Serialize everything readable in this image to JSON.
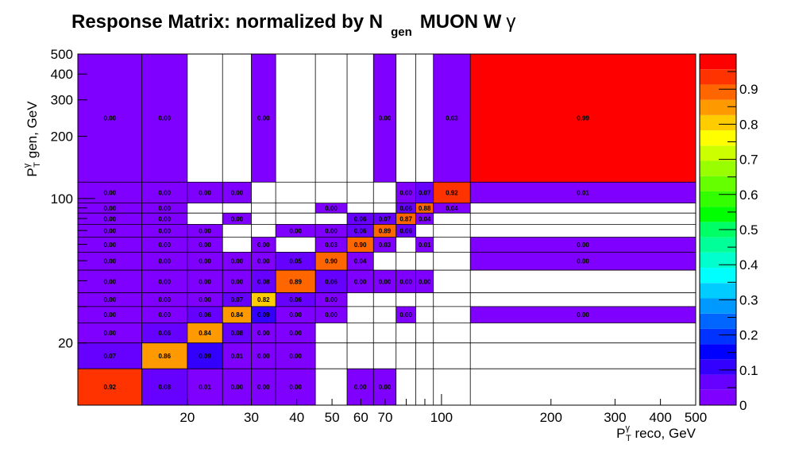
{
  "chart_data": {
    "type": "heatmap",
    "title": {
      "main": "Response Matrix: normalized by N",
      "sub": "gen",
      "tail": "MUON W",
      "symbol": "γ"
    },
    "xlabel": {
      "p": "P",
      "sup": "γ",
      "sub": "T",
      "rest": " reco, GeV"
    },
    "ylabel": {
      "p": "P",
      "sup": "γ",
      "sub": "T",
      "rest": " gen, GeV"
    },
    "x_scale": "log",
    "y_scale": "log",
    "x_bin_edges": [
      10,
      15,
      20,
      25,
      30,
      35,
      45,
      55,
      65,
      75,
      85,
      95,
      120,
      500
    ],
    "y_bin_edges": [
      10,
      15,
      20,
      25,
      30,
      35,
      45,
      55,
      65,
      75,
      85,
      95,
      120,
      500
    ],
    "x_ticks": [
      "20",
      "30",
      "40",
      "50",
      "60",
      "70",
      "100",
      "200",
      "300",
      "400",
      "500"
    ],
    "y_ticks": [
      "20",
      "100",
      "200",
      "300",
      "400",
      "500"
    ],
    "z_range": [
      0,
      1
    ],
    "colorbar_ticks": [
      "0",
      "0.1",
      "0.2",
      "0.3",
      "0.4",
      "0.5",
      "0.6",
      "0.7",
      "0.8",
      "0.9"
    ],
    "palette": [
      "#7f00ff",
      "#6600ff",
      "#3300ff",
      "#0000ff",
      "#0033ff",
      "#0066ff",
      "#0099ff",
      "#00ccff",
      "#00ffff",
      "#00ffcc",
      "#00ff99",
      "#00ff66",
      "#00ff00",
      "#33ff00",
      "#66ff00",
      "#99ff00",
      "#ccff00",
      "#ffff00",
      "#ffcc00",
      "#ff9900",
      "#ff6600",
      "#ff3300",
      "#ff0000"
    ],
    "cells": [
      {
        "x": 0,
        "y": 0,
        "v": 0.92,
        "label": "0.92"
      },
      {
        "x": 1,
        "y": 0,
        "v": 0.08,
        "label": "0.08"
      },
      {
        "x": 2,
        "y": 0,
        "v": 0.01,
        "label": "0.01"
      },
      {
        "x": 3,
        "y": 0,
        "v": 0.003,
        "label": "0.00"
      },
      {
        "x": 4,
        "y": 0,
        "v": 0.003,
        "label": "0.00"
      },
      {
        "x": 5,
        "y": 0,
        "v": 0.003,
        "label": "0.00"
      },
      {
        "x": 7,
        "y": 0,
        "v": 0.003,
        "label": "0.00"
      },
      {
        "x": 8,
        "y": 0,
        "v": 0.003,
        "label": "0.00"
      },
      {
        "x": 0,
        "y": 1,
        "v": 0.07,
        "label": "0.07"
      },
      {
        "x": 1,
        "y": 1,
        "v": 0.86,
        "label": "0.86"
      },
      {
        "x": 2,
        "y": 1,
        "v": 0.09,
        "label": "0.09"
      },
      {
        "x": 3,
        "y": 1,
        "v": 0.01,
        "label": "0.01"
      },
      {
        "x": 4,
        "y": 1,
        "v": 0.003,
        "label": "0.00"
      },
      {
        "x": 5,
        "y": 1,
        "v": 0.003,
        "label": "0.00"
      },
      {
        "x": 0,
        "y": 2,
        "v": 0.003,
        "label": "0.00"
      },
      {
        "x": 1,
        "y": 2,
        "v": 0.06,
        "label": "0.06"
      },
      {
        "x": 2,
        "y": 2,
        "v": 0.84,
        "label": "0.84"
      },
      {
        "x": 3,
        "y": 2,
        "v": 0.08,
        "label": "0.08"
      },
      {
        "x": 4,
        "y": 2,
        "v": 0.003,
        "label": "0.00"
      },
      {
        "x": 5,
        "y": 2,
        "v": 0.003,
        "label": "0.00"
      },
      {
        "x": 0,
        "y": 3,
        "v": 0.003,
        "label": "0.00"
      },
      {
        "x": 1,
        "y": 3,
        "v": 0.003,
        "label": "0.00"
      },
      {
        "x": 2,
        "y": 3,
        "v": 0.06,
        "label": "0.06"
      },
      {
        "x": 3,
        "y": 3,
        "v": 0.84,
        "label": "0.84"
      },
      {
        "x": 4,
        "y": 3,
        "v": 0.09,
        "label": "0.09"
      },
      {
        "x": 5,
        "y": 3,
        "v": 0.003,
        "label": "0.00"
      },
      {
        "x": 6,
        "y": 3,
        "v": 0.003,
        "label": "0.00"
      },
      {
        "x": 9,
        "y": 3,
        "v": 0.003,
        "label": "0.00"
      },
      {
        "x": 12,
        "y": 3,
        "v": 0.003,
        "label": "0.00"
      },
      {
        "x": 0,
        "y": 4,
        "v": 0.003,
        "label": "0.00"
      },
      {
        "x": 1,
        "y": 4,
        "v": 0.003,
        "label": "0.00"
      },
      {
        "x": 2,
        "y": 4,
        "v": 0.003,
        "label": "0.00"
      },
      {
        "x": 3,
        "y": 4,
        "v": 0.07,
        "label": "0.07"
      },
      {
        "x": 4,
        "y": 4,
        "v": 0.82,
        "label": "0.82"
      },
      {
        "x": 5,
        "y": 4,
        "v": 0.06,
        "label": "0.06"
      },
      {
        "x": 6,
        "y": 4,
        "v": 0.003,
        "label": "0.00"
      },
      {
        "x": 0,
        "y": 5,
        "v": 0.003,
        "label": "0.00"
      },
      {
        "x": 1,
        "y": 5,
        "v": 0.003,
        "label": "0.00"
      },
      {
        "x": 2,
        "y": 5,
        "v": 0.003,
        "label": "0.00"
      },
      {
        "x": 3,
        "y": 5,
        "v": 0.003,
        "label": "0.00"
      },
      {
        "x": 4,
        "y": 5,
        "v": 0.08,
        "label": "0.08"
      },
      {
        "x": 5,
        "y": 5,
        "v": 0.89,
        "label": "0.89"
      },
      {
        "x": 6,
        "y": 5,
        "v": 0.06,
        "label": "0.06"
      },
      {
        "x": 7,
        "y": 5,
        "v": 0.003,
        "label": "0.00"
      },
      {
        "x": 8,
        "y": 5,
        "v": 0.003,
        "label": "0.00"
      },
      {
        "x": 9,
        "y": 5,
        "v": 0.003,
        "label": "0.00"
      },
      {
        "x": 10,
        "y": 5,
        "v": 0.003,
        "label": "0.00"
      },
      {
        "x": 0,
        "y": 6,
        "v": 0.003,
        "label": "0.00"
      },
      {
        "x": 1,
        "y": 6,
        "v": 0.003,
        "label": "0.00"
      },
      {
        "x": 2,
        "y": 6,
        "v": 0.003,
        "label": "0.00"
      },
      {
        "x": 3,
        "y": 6,
        "v": 0.003,
        "label": "0.00"
      },
      {
        "x": 4,
        "y": 6,
        "v": 0.003,
        "label": "0.00"
      },
      {
        "x": 5,
        "y": 6,
        "v": 0.05,
        "label": "0.05"
      },
      {
        "x": 6,
        "y": 6,
        "v": 0.9,
        "label": "0.90"
      },
      {
        "x": 7,
        "y": 6,
        "v": 0.04,
        "label": "0.04"
      },
      {
        "x": 12,
        "y": 6,
        "v": 0.003,
        "label": "0.00"
      },
      {
        "x": 0,
        "y": 7,
        "v": 0.003,
        "label": "0.00"
      },
      {
        "x": 1,
        "y": 7,
        "v": 0.003,
        "label": "0.00"
      },
      {
        "x": 2,
        "y": 7,
        "v": 0.003,
        "label": "0.00"
      },
      {
        "x": 4,
        "y": 7,
        "v": 0.003,
        "label": "0.00"
      },
      {
        "x": 6,
        "y": 7,
        "v": 0.03,
        "label": "0.03"
      },
      {
        "x": 7,
        "y": 7,
        "v": 0.9,
        "label": "0.90"
      },
      {
        "x": 8,
        "y": 7,
        "v": 0.03,
        "label": "0.03"
      },
      {
        "x": 10,
        "y": 7,
        "v": 0.01,
        "label": "0.01"
      },
      {
        "x": 12,
        "y": 7,
        "v": 0.003,
        "label": "0.00"
      },
      {
        "x": 0,
        "y": 8,
        "v": 0.003,
        "label": "0.00"
      },
      {
        "x": 1,
        "y": 8,
        "v": 0.003,
        "label": "0.00"
      },
      {
        "x": 2,
        "y": 8,
        "v": 0.003,
        "label": "0.00"
      },
      {
        "x": 5,
        "y": 8,
        "v": 0.003,
        "label": "0.00"
      },
      {
        "x": 6,
        "y": 8,
        "v": 0.003,
        "label": "0.00"
      },
      {
        "x": 7,
        "y": 8,
        "v": 0.06,
        "label": "0.06"
      },
      {
        "x": 8,
        "y": 8,
        "v": 0.89,
        "label": "0.89"
      },
      {
        "x": 9,
        "y": 8,
        "v": 0.06,
        "label": "0.06"
      },
      {
        "x": 0,
        "y": 9,
        "v": 0.003,
        "label": "0.00"
      },
      {
        "x": 1,
        "y": 9,
        "v": 0.003,
        "label": "0.00"
      },
      {
        "x": 3,
        "y": 9,
        "v": 0.003,
        "label": "0.00"
      },
      {
        "x": 7,
        "y": 9,
        "v": 0.06,
        "label": "0.06"
      },
      {
        "x": 8,
        "y": 9,
        "v": 0.07,
        "label": "0.07"
      },
      {
        "x": 9,
        "y": 9,
        "v": 0.87,
        "label": "0.87"
      },
      {
        "x": 10,
        "y": 9,
        "v": 0.04,
        "label": "0.04"
      },
      {
        "x": 0,
        "y": 10,
        "v": 0.003,
        "label": "0.00"
      },
      {
        "x": 1,
        "y": 10,
        "v": 0.003,
        "label": "0.00"
      },
      {
        "x": 6,
        "y": 10,
        "v": 0.003,
        "label": "0.00"
      },
      {
        "x": 9,
        "y": 10,
        "v": 0.06,
        "label": "0.06"
      },
      {
        "x": 10,
        "y": 10,
        "v": 0.88,
        "label": "0.88"
      },
      {
        "x": 11,
        "y": 10,
        "v": 0.04,
        "label": "0.04"
      },
      {
        "x": 0,
        "y": 11,
        "v": 0.003,
        "label": "0.00"
      },
      {
        "x": 1,
        "y": 11,
        "v": 0.003,
        "label": "0.00"
      },
      {
        "x": 2,
        "y": 11,
        "v": 0.003,
        "label": "0.00"
      },
      {
        "x": 3,
        "y": 11,
        "v": 0.003,
        "label": "0.00"
      },
      {
        "x": 9,
        "y": 11,
        "v": 0.003,
        "label": "0.00"
      },
      {
        "x": 10,
        "y": 11,
        "v": 0.07,
        "label": "0.07"
      },
      {
        "x": 11,
        "y": 11,
        "v": 0.92,
        "label": "0.92"
      },
      {
        "x": 12,
        "y": 11,
        "v": 0.01,
        "label": "0.01"
      },
      {
        "x": 0,
        "y": 12,
        "v": 0.003,
        "label": "0.00"
      },
      {
        "x": 1,
        "y": 12,
        "v": 0.003,
        "label": "0.00"
      },
      {
        "x": 4,
        "y": 12,
        "v": 0.003,
        "label": "0.00"
      },
      {
        "x": 8,
        "y": 12,
        "v": 0.003,
        "label": "0.00"
      },
      {
        "x": 11,
        "y": 12,
        "v": 0.03,
        "label": "0.03"
      },
      {
        "x": 12,
        "y": 12,
        "v": 0.99,
        "label": "0.99"
      }
    ]
  }
}
